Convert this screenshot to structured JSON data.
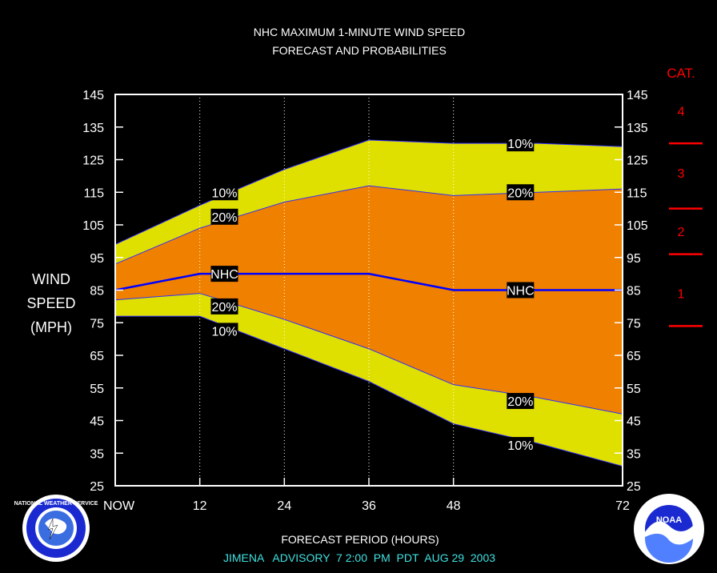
{
  "chart_data": {
    "type": "area",
    "title": "NHC MAXIMUM 1-MINUTE WIND SPEED",
    "subtitle": "FORECAST AND PROBABILITIES",
    "xlabel": "FORECAST PERIOD (HOURS)",
    "ylabel_lines": [
      "WIND",
      "SPEED",
      "(MPH)"
    ],
    "footer": "JIMENA   ADVISORY  7 2:00  PM  PDT  AUG 29  2003",
    "x_ticks": [
      0,
      12,
      24,
      36,
      48,
      72
    ],
    "x_tick_labels": [
      "NOW",
      "12",
      "24",
      "36",
      "48",
      "72"
    ],
    "y_ticks": [
      25,
      35,
      45,
      55,
      65,
      75,
      85,
      95,
      105,
      115,
      125,
      135,
      145
    ],
    "xlim": [
      0,
      72
    ],
    "ylim": [
      25,
      145
    ],
    "x": [
      0,
      12,
      24,
      36,
      48,
      60,
      72
    ],
    "series": [
      {
        "name": "10%",
        "values": [
          99,
          111,
          122,
          131,
          130,
          130,
          129
        ]
      },
      {
        "name": "20%",
        "values": [
          93,
          104,
          112,
          117,
          114,
          115,
          116
        ]
      },
      {
        "name": "NHC",
        "values": [
          85,
          90,
          90,
          90,
          85,
          85,
          85
        ]
      },
      {
        "name": "20%",
        "values": [
          82,
          84,
          76,
          67,
          56,
          52,
          47
        ]
      },
      {
        "name": "10%",
        "values": [
          77,
          77,
          67,
          57,
          44,
          38,
          31
        ]
      }
    ],
    "labels": [
      {
        "text": "10%",
        "x": 15.5,
        "y": 115
      },
      {
        "text": "20%",
        "x": 15.5,
        "y": 107.5
      },
      {
        "text": "NHC",
        "x": 15.5,
        "y": 90
      },
      {
        "text": "20%",
        "x": 15.5,
        "y": 80
      },
      {
        "text": "10%",
        "x": 15.5,
        "y": 72.5
      },
      {
        "text": "10%",
        "x": 57.5,
        "y": 130
      },
      {
        "text": "20%",
        "x": 57.5,
        "y": 115
      },
      {
        "text": "NHC",
        "x": 57.5,
        "y": 85
      },
      {
        "text": "20%",
        "x": 57.5,
        "y": 51
      },
      {
        "text": "10%",
        "x": 57.5,
        "y": 37.5
      }
    ],
    "category_scale": {
      "title": "CAT.",
      "categories": [
        {
          "label": "4",
          "y": 140
        },
        {
          "label": "3",
          "y": 121
        },
        {
          "label": "2",
          "y": 103
        },
        {
          "label": "1",
          "y": 84
        }
      ],
      "boundaries": [
        130,
        110,
        96,
        74
      ]
    },
    "colors": {
      "background": "#000000",
      "plot_background": "#000000",
      "outer_band": "#e0e000",
      "inner_band": "#f08000",
      "nhc_line": "#0000ff",
      "band_edge": "#3030ff",
      "category": "#ff0000",
      "frame": "#ffffff",
      "footer": "#40e0e0",
      "label_box": "#000000"
    },
    "grid": "vertical dotted at forecast hours",
    "logos": [
      {
        "name": "nws-logo",
        "text": "NATIONAL WEATHER SERVICE"
      },
      {
        "name": "noaa-logo",
        "text": "NOAA"
      }
    ]
  }
}
